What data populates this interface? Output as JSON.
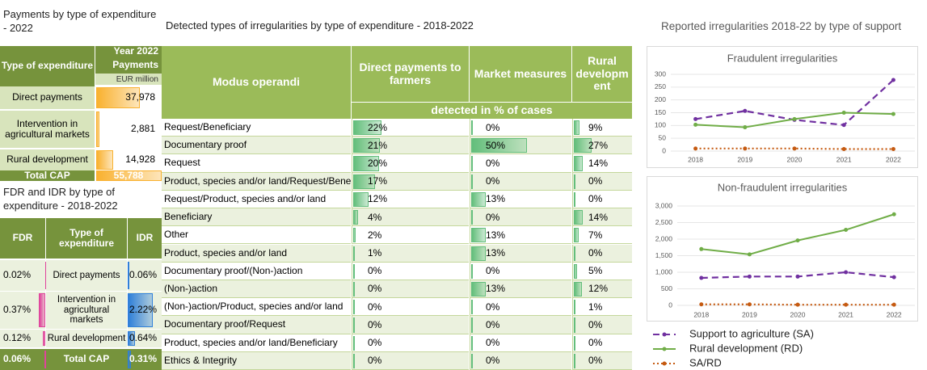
{
  "payments_table": {
    "title": "Payments by type of expenditure - 2022",
    "type_header": "Type of expenditure",
    "year_header": "Year 2022",
    "payments_header": "Payments",
    "unit_header": "EUR million",
    "types": [
      "Direct payments",
      "Intervention in agricultural markets",
      "Rural development"
    ],
    "values": [
      37978,
      2881,
      14928
    ],
    "value_labels": [
      "37,978",
      "2,881",
      "14,928"
    ],
    "total_name": "Total CAP",
    "total": 55788,
    "total_label": "55,788",
    "bar_color": "#f9b12f"
  },
  "rate_table": {
    "title": "FDR and IDR by type of expenditure - 2018-2022",
    "fdr_header": "FDR",
    "type_header": "Type of expenditure",
    "idr_header": "IDR",
    "types": [
      "Direct payments",
      "Intervention in agricultural markets",
      "Rural development"
    ],
    "fdr": {
      "values": [
        0.02,
        0.37,
        0.12
      ],
      "value_labels": [
        "0.02%",
        "0.37%",
        "0.12%"
      ],
      "color": "#e0449c"
    },
    "idr": {
      "values": [
        0.06,
        2.22,
        0.64
      ],
      "value_labels": [
        "0.06%",
        "2.22%",
        "0.64%"
      ],
      "color": "#2f7fd9"
    },
    "total_name": "Total CAP",
    "total_fdr": 0.06,
    "total_fdr_label": "0.06%",
    "total_idr": 0.31,
    "total_idr_label": "0.31%"
  },
  "irregularities_table": {
    "title": "Detected types of irregularities by type of expenditure - 2018-2022",
    "row_header": "Modus operandi",
    "columns": [
      "Direct payments to farmers",
      "Market measures",
      "Rural development"
    ],
    "subheader": "detected in % of cases",
    "bar_color": "#63be7b",
    "rows": [
      "Request/Beneficiary",
      "Documentary proof",
      "Request",
      "Product, species and/or land/Request/Beneficiary",
      "Request/Product, species and/or land",
      "Beneficiary",
      "Other",
      "Product, species and/or land",
      "Documentary proof/(Non-)action",
      "(Non-)action",
      "(Non-)action/Product, species and/or land",
      "Documentary proof/Request",
      "Product, species and/or land/Beneficiary",
      "Ethics & Integrity"
    ],
    "values": [
      [
        22,
        0,
        9
      ],
      [
        21,
        50,
        27
      ],
      [
        20,
        0,
        14
      ],
      [
        17,
        0,
        0
      ],
      [
        12,
        13,
        0
      ],
      [
        4,
        0,
        14
      ],
      [
        2,
        13,
        7
      ],
      [
        1,
        13,
        0
      ],
      [
        0,
        0,
        5
      ],
      [
        0,
        13,
        12
      ],
      [
        0,
        0,
        1
      ],
      [
        0,
        0,
        0
      ],
      [
        0,
        0,
        0
      ],
      [
        0,
        0,
        0
      ]
    ],
    "value_labels": [
      [
        "22%",
        "0%",
        "9%"
      ],
      [
        "21%",
        "50%",
        "27%"
      ],
      [
        "20%",
        "0%",
        "14%"
      ],
      [
        "17%",
        "0%",
        "0%"
      ],
      [
        "12%",
        "13%",
        "0%"
      ],
      [
        "4%",
        "0%",
        "14%"
      ],
      [
        "2%",
        "13%",
        "7%"
      ],
      [
        "1%",
        "13%",
        "0%"
      ],
      [
        "0%",
        "0%",
        "5%"
      ],
      [
        "0%",
        "13%",
        "12%"
      ],
      [
        "0%",
        "0%",
        "1%"
      ],
      [
        "0%",
        "0%",
        "0%"
      ],
      [
        "0%",
        "0%",
        "0%"
      ],
      [
        "0%",
        "0%",
        "0%"
      ]
    ]
  },
  "support_title": "Reported irregularities 2018-22 by type of support",
  "chart_data": [
    {
      "type": "line",
      "title": "Fraudulent irregularities",
      "categories": [
        "2018",
        "2019",
        "2020",
        "2021",
        "2022"
      ],
      "ylim": [
        0,
        300
      ],
      "yticks": [
        0,
        50,
        100,
        150,
        200,
        250,
        300
      ],
      "grid": true,
      "series": [
        {
          "name": "Support to agriculture (SA)",
          "color": "#7030a0",
          "line_style": "dashed",
          "values": [
            125,
            157,
            122,
            102,
            278
          ]
        },
        {
          "name": "Rural development (RD)",
          "color": "#70ad47",
          "line_style": "solid",
          "values": [
            103,
            93,
            125,
            150,
            145
          ]
        },
        {
          "name": "SA/RD",
          "color": "#c55a11",
          "line_style": "dotted",
          "values": [
            10,
            10,
            10,
            8,
            8
          ]
        }
      ]
    },
    {
      "type": "line",
      "title": "Non-fraudulent irregularities",
      "categories": [
        "2018",
        "2019",
        "2020",
        "2021",
        "2022"
      ],
      "ylim": [
        0,
        3000
      ],
      "yticks": [
        0,
        500,
        {
          "value": 1000,
          "label": "1,000"
        },
        {
          "value": 1500,
          "label": "1,500"
        },
        {
          "value": 2000,
          "label": "2,000"
        },
        {
          "value": 2500,
          "label": "2,500"
        },
        {
          "value": 3000,
          "label": "3,000"
        }
      ],
      "grid": true,
      "series": [
        {
          "name": "Support to agriculture (SA)",
          "color": "#7030a0",
          "line_style": "dashed",
          "values": [
            830,
            870,
            870,
            1000,
            850
          ]
        },
        {
          "name": "Rural development (RD)",
          "color": "#70ad47",
          "line_style": "solid",
          "values": [
            1700,
            1540,
            1960,
            2280,
            2750
          ]
        },
        {
          "name": "SA/RD",
          "color": "#c55a11",
          "line_style": "dotted",
          "values": [
            30,
            30,
            20,
            20,
            20
          ]
        }
      ]
    }
  ]
}
